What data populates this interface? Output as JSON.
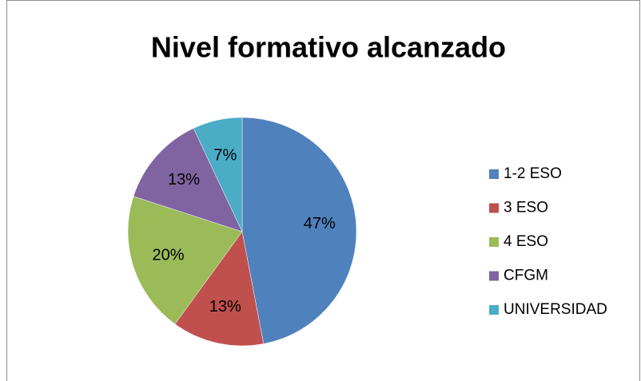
{
  "chart_data": {
    "type": "pie",
    "title": "Nivel formativo alcanzado",
    "categories": [
      "1-2 ESO",
      "3 ESO",
      "4 ESO",
      "CFGM",
      "UNIVERSIDAD"
    ],
    "values": [
      47,
      13,
      20,
      13,
      7
    ],
    "value_labels": [
      "47%",
      "13%",
      "20%",
      "13%",
      "7%"
    ],
    "colors": [
      "#4f81bd",
      "#c0504d",
      "#9bbb59",
      "#8064a2",
      "#4bacc6"
    ],
    "legend": "right"
  }
}
